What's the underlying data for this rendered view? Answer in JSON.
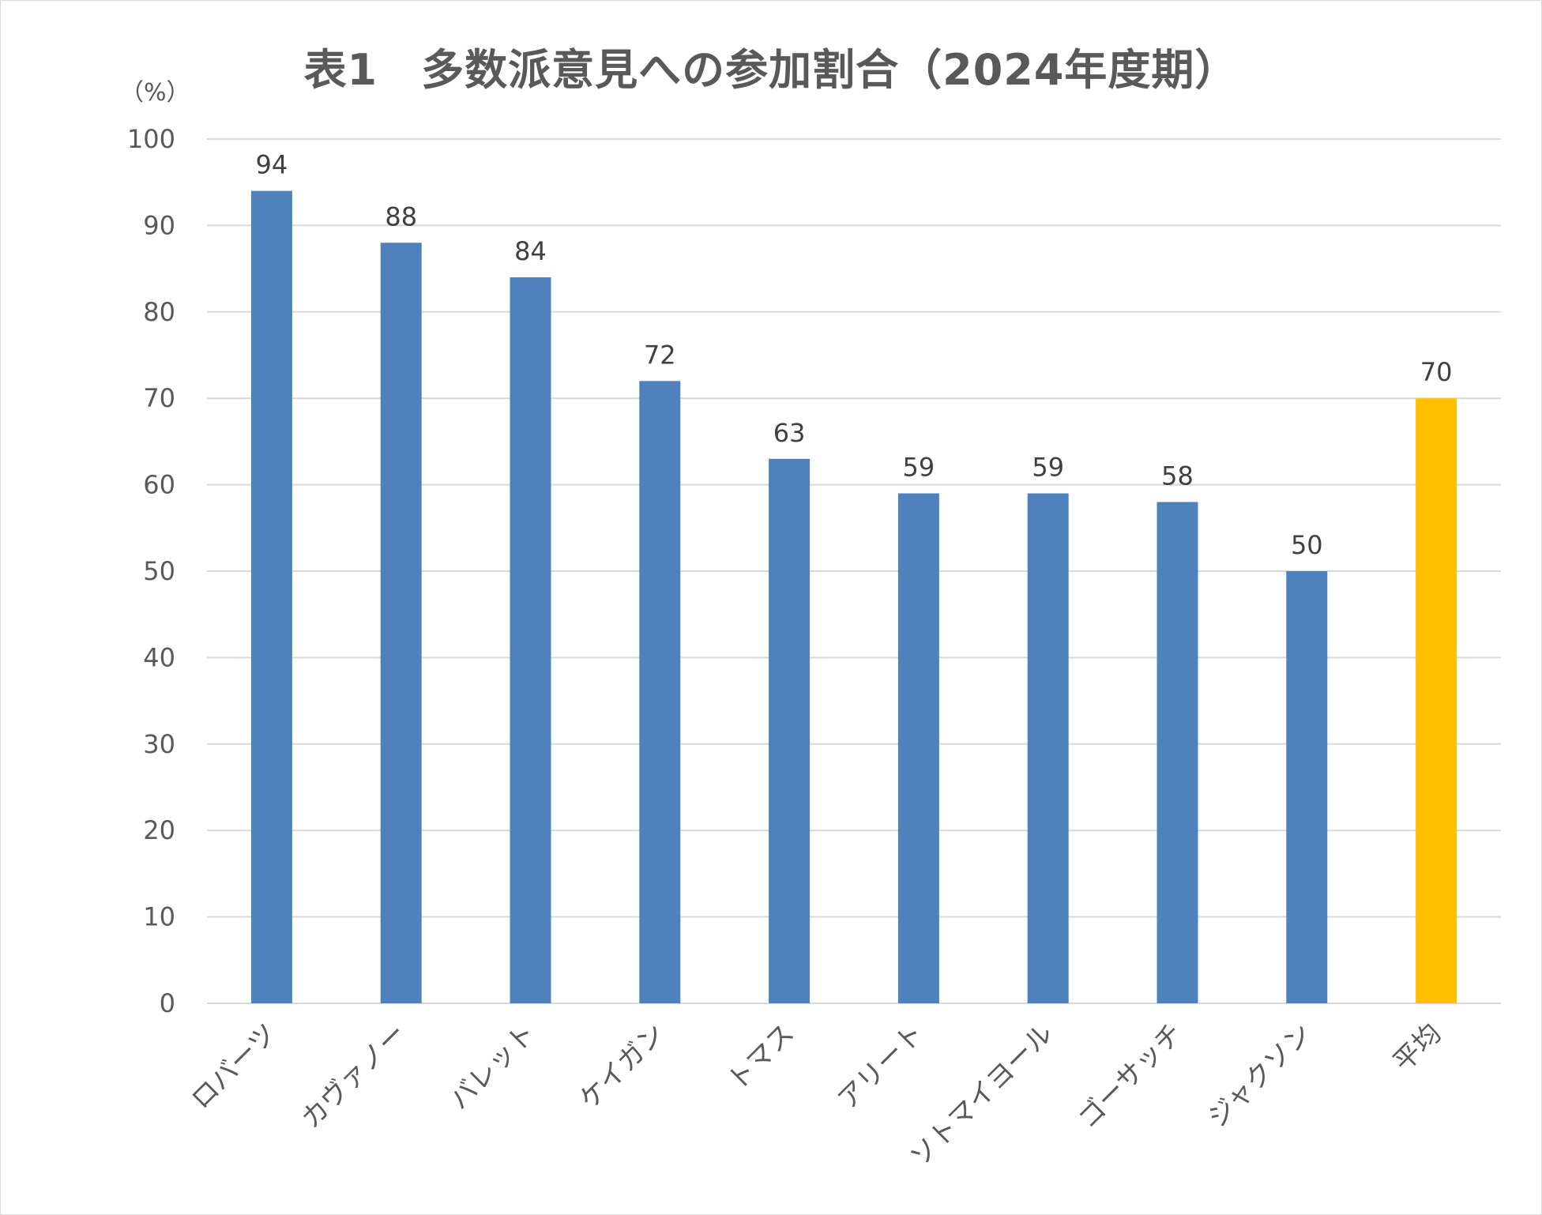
{
  "chart_data": {
    "type": "bar",
    "title": "表1　多数派意見への参加割合（2024年度期）",
    "ylabel": "（%）",
    "xlabel": "",
    "categories": [
      "ロバーツ",
      "カヴァノー",
      "バレット",
      "ケイガン",
      "トマス",
      "アリート",
      "ソトマイヨール",
      "ゴーサッチ",
      "ジャクソン",
      "平均"
    ],
    "values": [
      94,
      88,
      84,
      72,
      63,
      59,
      59,
      58,
      50,
      70
    ],
    "data_labels": [
      "94",
      "88",
      "84",
      "72",
      "63",
      "59",
      "59",
      "58",
      "50",
      "70"
    ],
    "ylim": [
      0,
      100
    ],
    "yticks": [
      "0",
      "10",
      "20",
      "30",
      "40",
      "50",
      "60",
      "70",
      "80",
      "90",
      "100"
    ],
    "grid": true,
    "legend": "none",
    "colors": {
      "bar": "#4f81bd",
      "highlight": "#ffc000",
      "grid": "#d9d9d9"
    },
    "highlight_category": "平均"
  }
}
